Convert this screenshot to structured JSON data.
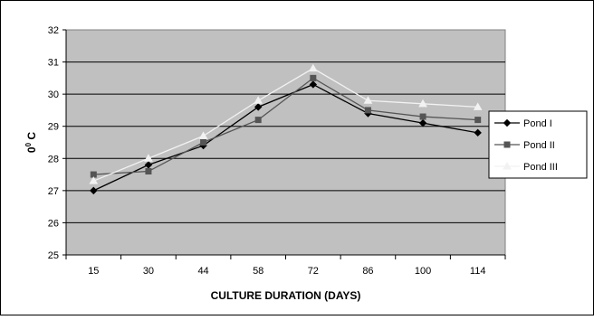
{
  "chart_data": {
    "type": "line",
    "title": "",
    "xlabel": "CULTURE DURATION (DAYS)",
    "ylabel_base": "0",
    "ylabel_sup": "0",
    "ylabel_unit": " C",
    "categories": [
      "15",
      "30",
      "44",
      "58",
      "72",
      "86",
      "100",
      "114"
    ],
    "ylim": [
      25,
      32
    ],
    "yticks": [
      "25",
      "26",
      "27",
      "28",
      "29",
      "30",
      "31",
      "32"
    ],
    "grid": "horizontal",
    "plot_background": "#c0c0c0",
    "legend_position": "right",
    "series": [
      {
        "name": "Pond I",
        "marker": "diamond",
        "color": "#000000",
        "values": [
          27.0,
          27.8,
          28.4,
          29.6,
          30.3,
          29.4,
          29.1,
          28.8
        ]
      },
      {
        "name": "Pond II",
        "marker": "square",
        "color": "#555555",
        "values": [
          27.5,
          27.6,
          28.5,
          29.2,
          30.5,
          29.5,
          29.3,
          29.2
        ]
      },
      {
        "name": "Pond III",
        "marker": "triangle",
        "color": "#f2f2f2",
        "values": [
          27.3,
          28.0,
          28.7,
          29.8,
          30.8,
          29.8,
          29.7,
          29.6
        ]
      }
    ]
  }
}
